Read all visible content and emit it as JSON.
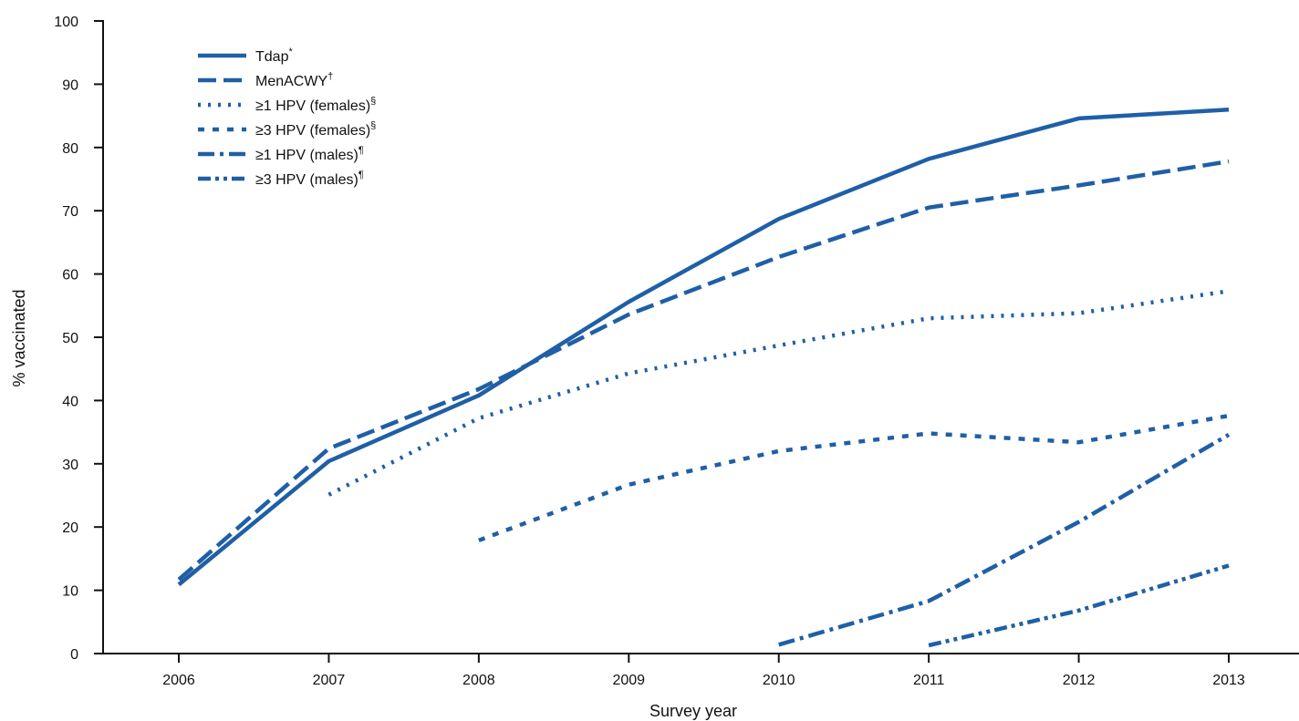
{
  "chart_data": {
    "type": "line",
    "title": "",
    "xlabel": "Survey year",
    "ylabel": "% vaccinated",
    "x": [
      2006,
      2007,
      2008,
      2009,
      2010,
      2011,
      2012,
      2013
    ],
    "x_tick_labels": [
      "2006",
      "2007",
      "2008",
      "2009",
      "2010",
      "2011",
      "2012",
      "2013"
    ],
    "y_tick_labels": [
      "0",
      "10",
      "20",
      "30",
      "40",
      "50",
      "60",
      "70",
      "80",
      "90",
      "100"
    ],
    "ylim": [
      0,
      100
    ],
    "grid": false,
    "legend_position": "top-left",
    "line_color": "#1f5fa6",
    "series": [
      {
        "name": "Tdap",
        "name_mark": "*",
        "style": "solid",
        "values": [
          10.9,
          30.4,
          40.8,
          55.6,
          68.7,
          78.2,
          84.6,
          86.0
        ]
      },
      {
        "name": "MenACWY",
        "name_mark": "†",
        "style": "dashed",
        "values": [
          11.7,
          32.4,
          41.8,
          53.6,
          62.7,
          70.5,
          74.0,
          77.8
        ]
      },
      {
        "name": "≥1 HPV (females)",
        "name_mark": "§",
        "style": "dotted",
        "values": [
          null,
          25.1,
          37.2,
          44.3,
          48.7,
          53.0,
          53.8,
          57.3
        ]
      },
      {
        "name": "≥3 HPV (females)",
        "name_mark": "§",
        "style": "short-dash",
        "values": [
          null,
          null,
          17.9,
          26.7,
          32.0,
          34.8,
          33.4,
          37.6
        ]
      },
      {
        "name": "≥1 HPV (males)",
        "name_mark": "¶",
        "style": "dash-dot",
        "values": [
          null,
          null,
          null,
          null,
          1.4,
          8.3,
          20.8,
          34.6
        ]
      },
      {
        "name": "≥3 HPV (males)",
        "name_mark": "¶",
        "style": "dash-dot-dot",
        "values": [
          null,
          null,
          null,
          null,
          null,
          1.3,
          6.8,
          13.9
        ]
      }
    ]
  }
}
